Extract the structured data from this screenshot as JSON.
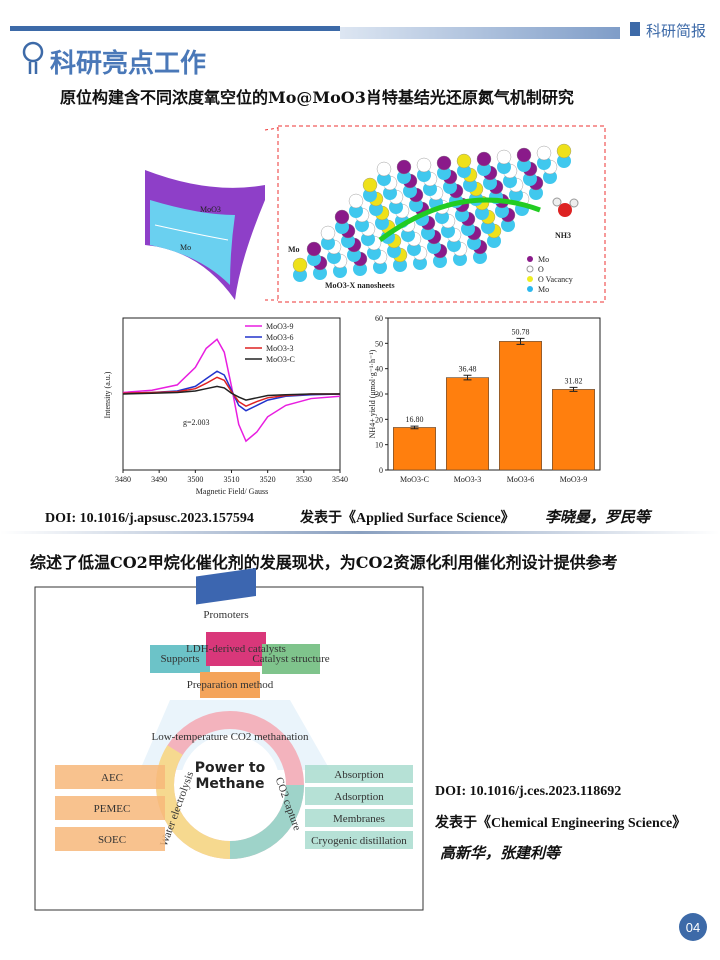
{
  "header": {
    "brand": "科研简报"
  },
  "section_title": "科研亮点工作",
  "items": [
    {
      "headline": "原位构建含不同浓度氧空位的Mo@MoO3肖特基结光还原氮气机制研究",
      "doi": "DOI: 10.1016/j.apsusc.2023.157594",
      "journal": "发表于《Applied Surface Science》",
      "authors": "李晓曼，罗民等"
    },
    {
      "headline": "综述了低温CO2甲烷化催化剂的发展现状，为CO2资源化利用催化剂设计提供参考",
      "doi": "DOI: 10.1016/j.ces.2023.118692",
      "journal": "发表于《Chemical Engineering Science》",
      "authors": "高新华，张建利等"
    }
  ],
  "figure1": {
    "schematic": {
      "labels": [
        "MoO3",
        "Mo",
        "Mo",
        "MoO3-X nanosheets",
        "NH3"
      ],
      "legend": [
        "Mo",
        "O",
        "O Vacancy",
        "Mo"
      ]
    },
    "epr": {
      "type": "line",
      "xlabel": "Magnetic Field/ Gauss",
      "ylabel": "Intensity (a.u.)",
      "annotation": "g=2.003",
      "x": [
        3480,
        3488,
        3495,
        3500,
        3503,
        3506,
        3508,
        3510,
        3512,
        3514,
        3517,
        3520,
        3525,
        3532,
        3540
      ],
      "xlim": [
        3480,
        3540
      ],
      "xticks": [
        3480,
        3490,
        3500,
        3510,
        3520,
        3530,
        3540
      ],
      "ylim": [
        -1,
        1
      ],
      "series": [
        {
          "name": "MoO3-9",
          "color": "#e81ee0",
          "values": [
            0.02,
            0.05,
            0.12,
            0.35,
            0.6,
            0.72,
            0.55,
            0.1,
            -0.4,
            -0.62,
            -0.5,
            -0.3,
            -0.15,
            -0.06,
            -0.03
          ]
        },
        {
          "name": "MoO3-6",
          "color": "#2233cc",
          "values": [
            0.01,
            0.02,
            0.04,
            0.1,
            0.2,
            0.3,
            0.25,
            0.05,
            -0.15,
            -0.22,
            -0.15,
            -0.08,
            -0.03,
            -0.01,
            0
          ]
        },
        {
          "name": "MoO3-3",
          "color": "#dd2222",
          "values": [
            0.01,
            0.02,
            0.03,
            0.07,
            0.14,
            0.22,
            0.18,
            0.03,
            -0.1,
            -0.16,
            -0.1,
            -0.05,
            -0.02,
            0,
            0
          ]
        },
        {
          "name": "MoO3-C",
          "color": "#222222",
          "values": [
            0,
            0.01,
            0.02,
            0.04,
            0.07,
            0.1,
            0.08,
            0.01,
            -0.04,
            -0.08,
            -0.05,
            -0.02,
            -0.01,
            0,
            0
          ]
        }
      ]
    },
    "yield": {
      "type": "bar",
      "ylabel": "NH4+ yield (μmol·g⁻¹·h⁻¹)",
      "categories": [
        "MoO3-C",
        "MoO3-3",
        "MoO3-6",
        "MoO3-9"
      ],
      "values": [
        16.8,
        36.48,
        50.78,
        31.82
      ],
      "value_labels": [
        "16.80",
        "36.48",
        "50.78",
        "31.82"
      ],
      "errors": [
        0.5,
        0.9,
        1.2,
        0.8
      ],
      "color": "#ff7f0e",
      "ylim": [
        0,
        60
      ],
      "yticks": [
        0,
        10,
        20,
        30,
        40,
        50,
        60
      ]
    }
  },
  "figure2": {
    "blocks": [
      "Promoters",
      "LDH-derived catalysts",
      "Supports",
      "Catalyst structure",
      "Preparation method"
    ],
    "ring": [
      "Low-temperature CO2 methanation",
      "CO2 capture",
      "Water electrolysis"
    ],
    "center": "Power to Methane",
    "left": [
      "AEC",
      "PEMEC",
      "SOEC"
    ],
    "right": [
      "Absorption",
      "Adsorption",
      "Membranes",
      "Cryogenic distillation"
    ]
  },
  "page_number": "04"
}
